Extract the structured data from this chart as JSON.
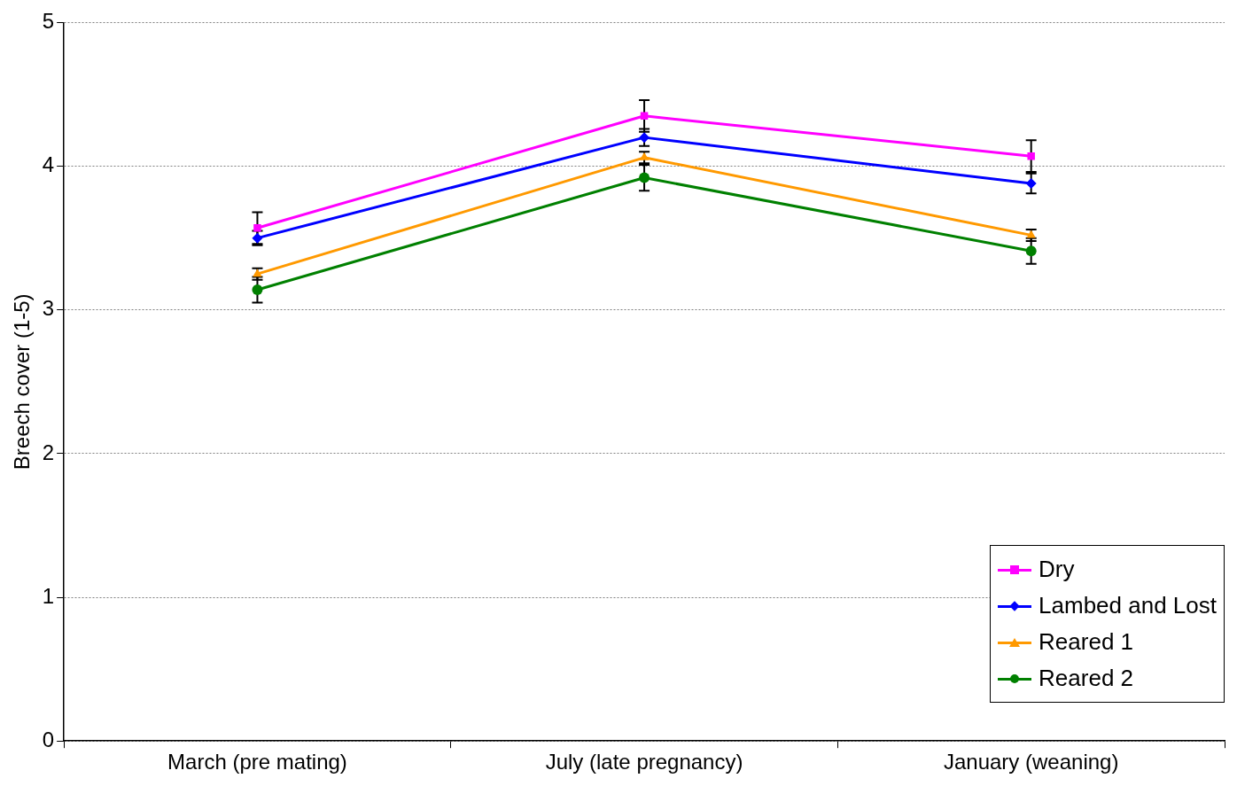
{
  "chart_data": {
    "type": "line",
    "ylabel": "Breech cover (1-5)",
    "categories": [
      "March (pre mating)",
      "July (late pregnancy)",
      "January (weaning)"
    ],
    "ylim": [
      0,
      5
    ],
    "yticks": [
      0,
      1,
      2,
      3,
      4,
      5
    ],
    "grid": "y",
    "legend": "bottom right",
    "series": [
      {
        "name": "Dry",
        "color": "#ff00ff",
        "marker": "square",
        "values": [
          3.57,
          4.35,
          4.07
        ],
        "errors": [
          0.11,
          0.11,
          0.11
        ]
      },
      {
        "name": "Lambed and Lost",
        "color": "#0000ff",
        "marker": "diamond",
        "values": [
          3.5,
          4.2,
          3.88
        ],
        "errors": [
          0.05,
          0.06,
          0.07
        ]
      },
      {
        "name": "Reared 1",
        "color": "#ff9900",
        "marker": "triangle",
        "values": [
          3.25,
          4.06,
          3.52
        ],
        "errors": [
          0.04,
          0.04,
          0.04
        ]
      },
      {
        "name": "Reared 2",
        "color": "#008000",
        "marker": "circle",
        "values": [
          3.14,
          3.92,
          3.41
        ],
        "errors": [
          0.09,
          0.09,
          0.09
        ]
      }
    ]
  }
}
